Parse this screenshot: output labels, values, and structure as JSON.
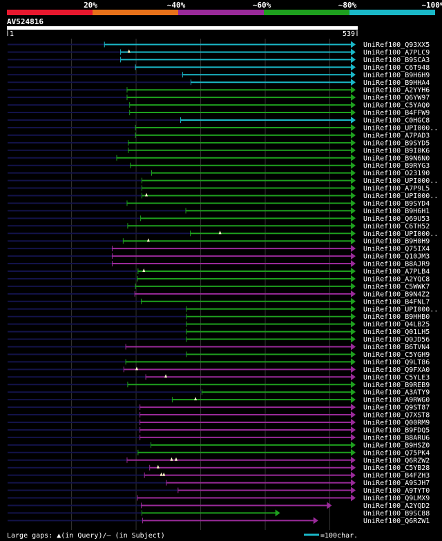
{
  "chart_data": {
    "type": "alignment-overview",
    "query_id": "AV524816",
    "query_length": 539,
    "query_start_label": "1",
    "query_end_label": "539",
    "identity_scale": [
      {
        "label": "20%",
        "color": "#e8182e"
      },
      {
        "label": "~40%",
        "color": "#e8721a"
      },
      {
        "label": "~60%",
        "color": "#9a2a9a"
      },
      {
        "label": "~80%",
        "color": "#1ea01e"
      },
      {
        "label": "~100%",
        "color": "#1ab8c8"
      }
    ],
    "hits": [
      {
        "id": "UniRef100_Q93XX5",
        "start": 151,
        "end": 539,
        "color": "cyan"
      },
      {
        "id": "UniRef100_A7PLC9",
        "start": 176,
        "end": 539,
        "color": "cyan",
        "gap_markers": [
          189
        ]
      },
      {
        "id": "UniRef100_B9SCA3",
        "start": 176,
        "end": 539,
        "color": "cyan"
      },
      {
        "id": "UniRef100_C6T948",
        "start": 199,
        "end": 539,
        "color": "cyan"
      },
      {
        "id": "UniRef100_B9H6H9",
        "start": 272,
        "end": 539,
        "color": "cyan"
      },
      {
        "id": "UniRef100_B9HHA4",
        "start": 285,
        "end": 539,
        "color": "cyan"
      },
      {
        "id": "UniRef100_A2YYH6",
        "start": 186,
        "end": 539,
        "color": "green"
      },
      {
        "id": "UniRef100_Q6YW97",
        "start": 186,
        "end": 539,
        "color": "green"
      },
      {
        "id": "UniRef100_C5YAQ0",
        "start": 190,
        "end": 539,
        "color": "green"
      },
      {
        "id": "UniRef100_B4FFW9",
        "start": 190,
        "end": 539,
        "color": "green"
      },
      {
        "id": "UniRef100_C0HGC8",
        "start": 269,
        "end": 539,
        "color": "cyan"
      },
      {
        "id": "UniRef100_UPI000..",
        "start": 199,
        "end": 539,
        "color": "green"
      },
      {
        "id": "UniRef100_A7PAD3",
        "start": 199,
        "end": 539,
        "color": "green"
      },
      {
        "id": "UniRef100_B9SYD5",
        "start": 188,
        "end": 539,
        "color": "green"
      },
      {
        "id": "UniRef100_B9I0K6",
        "start": 188,
        "end": 539,
        "color": "green"
      },
      {
        "id": "UniRef100_B9N6N0",
        "start": 170,
        "end": 539,
        "color": "green"
      },
      {
        "id": "UniRef100_B9RYG3",
        "start": 191,
        "end": 539,
        "color": "green"
      },
      {
        "id": "UniRef100_O23190",
        "start": 224,
        "end": 539,
        "color": "green"
      },
      {
        "id": "UniRef100_UPI000..",
        "start": 209,
        "end": 539,
        "color": "green"
      },
      {
        "id": "UniRef100_A7P9L5",
        "start": 209,
        "end": 539,
        "color": "green"
      },
      {
        "id": "UniRef100_UPI000..",
        "start": 209,
        "end": 539,
        "color": "green",
        "gap_markers": [
          216
        ]
      },
      {
        "id": "UniRef100_B9SYD4",
        "start": 186,
        "end": 539,
        "color": "green"
      },
      {
        "id": "UniRef100_B9H6H1",
        "start": 277,
        "end": 539,
        "color": "green"
      },
      {
        "id": "UniRef100_Q69U53",
        "start": 207,
        "end": 539,
        "color": "green"
      },
      {
        "id": "UniRef100_C6TH52",
        "start": 187,
        "end": 539,
        "color": "green"
      },
      {
        "id": "UniRef100_UPI000..",
        "start": 284,
        "end": 539,
        "color": "green",
        "gap_markers": [
          330
        ]
      },
      {
        "id": "UniRef100_B9H0H9",
        "start": 180,
        "end": 539,
        "color": "green",
        "gap_markers": [
          219
        ]
      },
      {
        "id": "UniRef100_Q75IX4",
        "start": 163,
        "end": 539,
        "color": "purple"
      },
      {
        "id": "UniRef100_Q10JM3",
        "start": 163,
        "end": 539,
        "color": "purple"
      },
      {
        "id": "UniRef100_B8AJR9",
        "start": 163,
        "end": 539,
        "color": "purple"
      },
      {
        "id": "UniRef100_A7PLB4",
        "start": 203,
        "end": 539,
        "color": "green",
        "gap_markers": [
          212
        ]
      },
      {
        "id": "UniRef100_A2YQC8",
        "start": 202,
        "end": 539,
        "color": "green"
      },
      {
        "id": "UniRef100_C5WWK7",
        "start": 199,
        "end": 539,
        "color": "green"
      },
      {
        "id": "UniRef100_B9N4Z2",
        "start": 198,
        "end": 539,
        "color": "purple"
      },
      {
        "id": "UniRef100_B4FNL7",
        "start": 208,
        "end": 539,
        "color": "green"
      },
      {
        "id": "UniRef100_UPI000..",
        "start": 278,
        "end": 539,
        "color": "green"
      },
      {
        "id": "UniRef100_B9HHB0",
        "start": 278,
        "end": 539,
        "color": "green"
      },
      {
        "id": "UniRef100_Q4LB25",
        "start": 278,
        "end": 539,
        "color": "green"
      },
      {
        "id": "UniRef100_Q01LH5",
        "start": 278,
        "end": 539,
        "color": "green"
      },
      {
        "id": "UniRef100_Q0JD56",
        "start": 278,
        "end": 539,
        "color": "green"
      },
      {
        "id": "UniRef100_B6TVN4",
        "start": 184,
        "end": 539,
        "color": "purple"
      },
      {
        "id": "UniRef100_C5YGH9",
        "start": 278,
        "end": 539,
        "color": "green"
      },
      {
        "id": "UniRef100_Q9LT86",
        "start": 184,
        "end": 539,
        "color": "green"
      },
      {
        "id": "UniRef100_Q9FXA0",
        "start": 181,
        "end": 539,
        "color": "purple",
        "gap_markers": [
          201
        ]
      },
      {
        "id": "UniRef100_C5YLE3",
        "start": 215,
        "end": 539,
        "color": "purple",
        "gap_markers": [
          246
        ]
      },
      {
        "id": "UniRef100_B9REB9",
        "start": 187,
        "end": 539,
        "color": "green"
      },
      {
        "id": "UniRef100_A3ATY9",
        "start": 302,
        "end": 539,
        "color": "green"
      },
      {
        "id": "UniRef100_A9RWG0",
        "start": 256,
        "end": 539,
        "color": "green",
        "gap_markers": [
          292
        ]
      },
      {
        "id": "UniRef100_Q9ST87",
        "start": 206,
        "end": 539,
        "color": "purple"
      },
      {
        "id": "UniRef100_Q7XST8",
        "start": 206,
        "end": 539,
        "color": "purple"
      },
      {
        "id": "UniRef100_Q00RM9",
        "start": 206,
        "end": 539,
        "color": "purple"
      },
      {
        "id": "UniRef100_B9FDQ5",
        "start": 206,
        "end": 539,
        "color": "purple"
      },
      {
        "id": "UniRef100_B8ARU6",
        "start": 206,
        "end": 539,
        "color": "purple"
      },
      {
        "id": "UniRef100_B9HSZ0",
        "start": 223,
        "end": 539,
        "color": "green"
      },
      {
        "id": "UniRef100_Q75PK4",
        "start": 203,
        "end": 539,
        "color": "green"
      },
      {
        "id": "UniRef100_Q6RZW2",
        "start": 186,
        "end": 539,
        "color": "purple",
        "gap_markers": [
          255,
          262
        ]
      },
      {
        "id": "UniRef100_C5YB28",
        "start": 221,
        "end": 539,
        "color": "purple",
        "gap_markers": [
          234
        ]
      },
      {
        "id": "UniRef100_B4FZH3",
        "start": 213,
        "end": 539,
        "color": "purple",
        "gap_markers": [
          239,
          243
        ]
      },
      {
        "id": "UniRef100_A9SJH7",
        "start": 247,
        "end": 539,
        "color": "purple"
      },
      {
        "id": "UniRef100_A9TYT0",
        "start": 265,
        "end": 539,
        "color": "purple"
      },
      {
        "id": "UniRef100_Q9LMX9",
        "start": 202,
        "end": 539,
        "color": "purple"
      },
      {
        "id": "UniRef100_A2YQD2",
        "start": 208,
        "end": 502,
        "color": "purple"
      },
      {
        "id": "UniRef100_B9SC88",
        "start": 209,
        "end": 422,
        "color": "green"
      },
      {
        "id": "UniRef100_Q6RZW1",
        "start": 210,
        "end": 481,
        "color": "purple"
      }
    ],
    "legend": {
      "gaps_text": "Large gaps: ▲(in Query)/– (in Subject)",
      "scale_text": "=100char."
    }
  }
}
